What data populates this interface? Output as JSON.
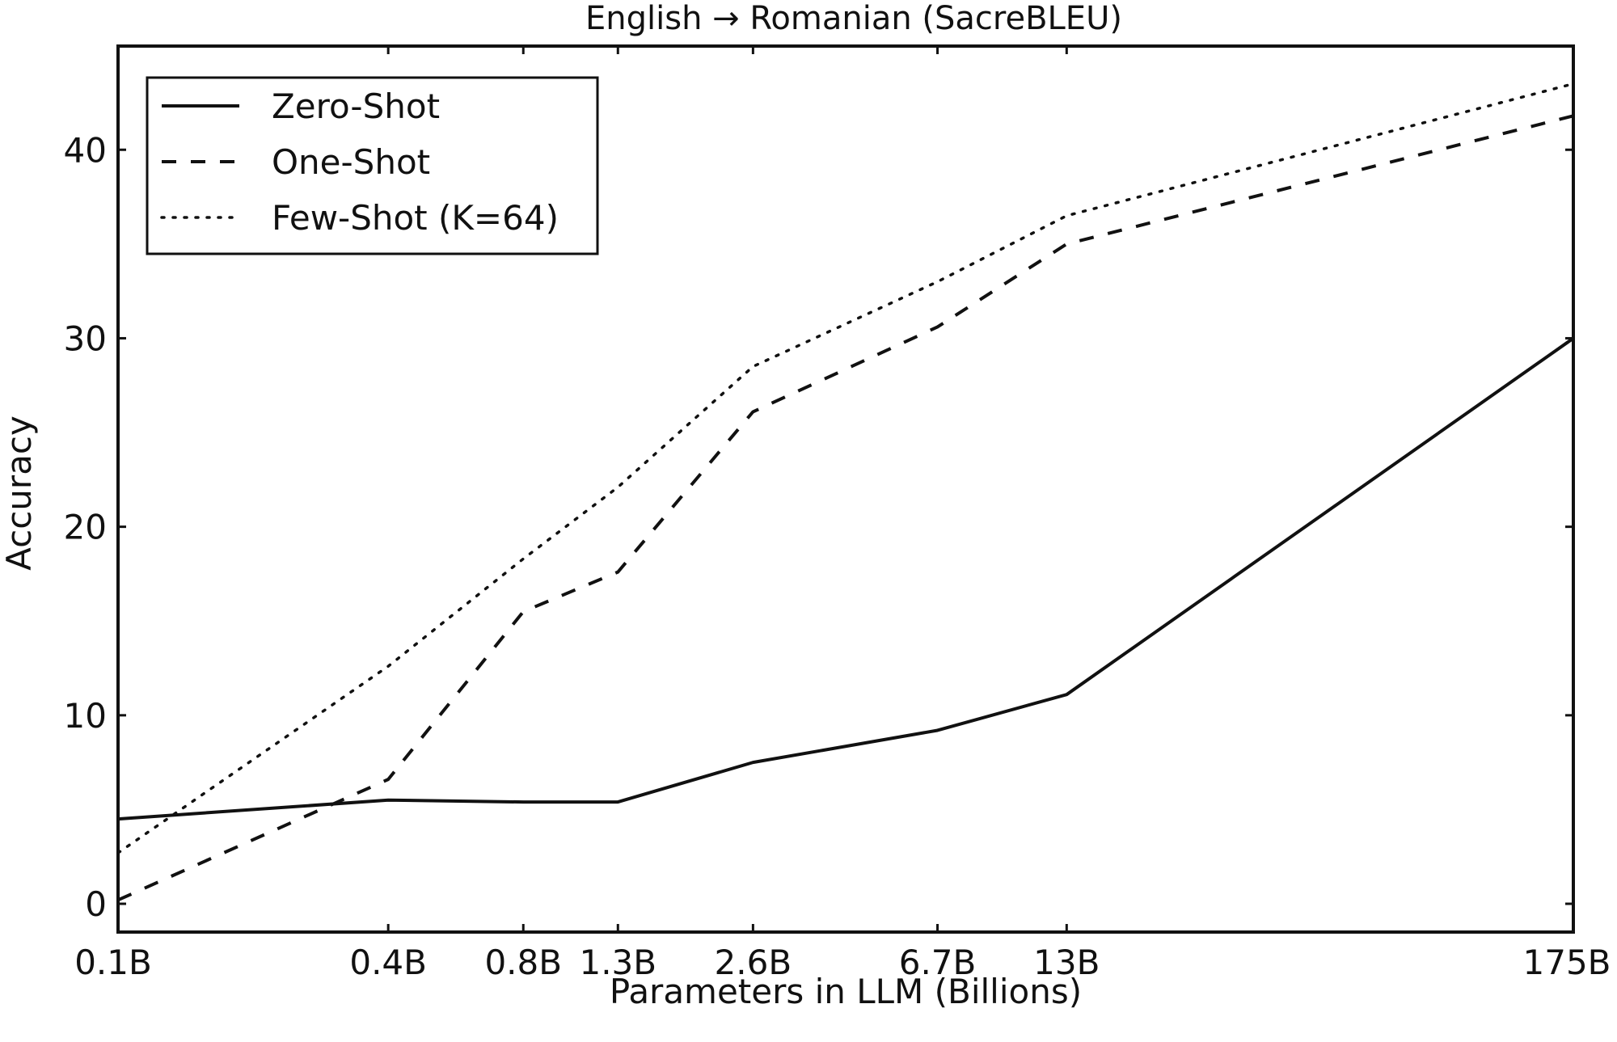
{
  "chart_data": {
    "type": "line",
    "title": "English → Romanian (SacreBLEU)",
    "xlabel": "Parameters in LLM (Billions)",
    "ylabel": "Accuracy",
    "x_scale": "log",
    "x": [
      0.1,
      0.4,
      0.8,
      1.3,
      2.6,
      6.7,
      13,
      175
    ],
    "x_tick_labels": [
      "0.1B",
      "0.4B",
      "0.8B",
      "1.3B",
      "2.6B",
      "6.7B",
      "13B",
      "175B"
    ],
    "y_ticks": [
      0,
      10,
      20,
      30,
      40
    ],
    "ylim": [
      -1.5,
      45.5
    ],
    "grid": false,
    "legend_position": "top-left",
    "series": [
      {
        "name": "Zero-Shot",
        "style": "solid",
        "values": [
          4.5,
          5.5,
          5.4,
          5.4,
          7.5,
          9.2,
          11.1,
          30.0
        ]
      },
      {
        "name": "One-Shot",
        "style": "dashed",
        "values": [
          0.2,
          6.6,
          15.5,
          17.6,
          26.1,
          30.6,
          35.0,
          41.8
        ]
      },
      {
        "name": "Few-Shot (K=64)",
        "style": "dotted",
        "values": [
          2.7,
          12.6,
          18.3,
          22.1,
          28.5,
          33.0,
          36.5,
          43.5
        ]
      }
    ]
  }
}
